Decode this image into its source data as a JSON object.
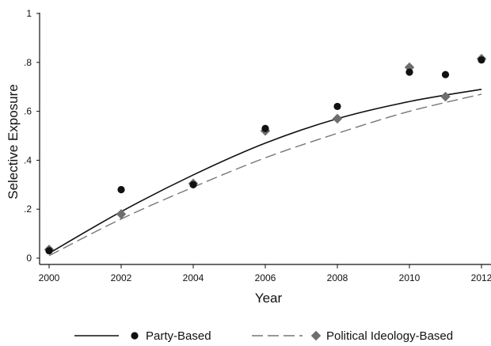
{
  "chart_data": {
    "type": "scatter",
    "xlabel": "Year",
    "ylabel": "Selective Exposure",
    "xlim": [
      2000,
      2012
    ],
    "ylim": [
      0,
      1
    ],
    "x_ticks": [
      2000,
      2002,
      2004,
      2006,
      2008,
      2010,
      2012
    ],
    "x_tick_labels": [
      "2000",
      "2002",
      "2004",
      "2006",
      "2008",
      "2010",
      "2012"
    ],
    "y_ticks": [
      0,
      0.2,
      0.4,
      0.6,
      0.8,
      1
    ],
    "y_tick_labels": [
      "0",
      ".2",
      ".4",
      ".6",
      ".8",
      "1"
    ],
    "legend_position": "bottom",
    "series": [
      {
        "name": "Party-Based",
        "marker": "circle",
        "marker_color": "#111111",
        "line_style": "solid",
        "line_color": "#111111",
        "points": [
          {
            "x": 2000,
            "y": 0.03
          },
          {
            "x": 2002,
            "y": 0.28
          },
          {
            "x": 2004,
            "y": 0.3
          },
          {
            "x": 2006,
            "y": 0.53
          },
          {
            "x": 2008,
            "y": 0.62
          },
          {
            "x": 2010,
            "y": 0.76
          },
          {
            "x": 2011,
            "y": 0.75
          },
          {
            "x": 2012,
            "y": 0.81
          }
        ],
        "fit": [
          {
            "x": 2000,
            "y": 0.02
          },
          {
            "x": 2002,
            "y": 0.19
          },
          {
            "x": 2004,
            "y": 0.34
          },
          {
            "x": 2006,
            "y": 0.47
          },
          {
            "x": 2008,
            "y": 0.57
          },
          {
            "x": 2010,
            "y": 0.64
          },
          {
            "x": 2012,
            "y": 0.69
          }
        ]
      },
      {
        "name": "Political Ideology-Based",
        "marker": "diamond",
        "marker_color": "#6e6e6e",
        "line_style": "dashed",
        "line_color": "#777777",
        "points": [
          {
            "x": 2000,
            "y": 0.035
          },
          {
            "x": 2002,
            "y": 0.18
          },
          {
            "x": 2004,
            "y": 0.305
          },
          {
            "x": 2006,
            "y": 0.52
          },
          {
            "x": 2008,
            "y": 0.57
          },
          {
            "x": 2010,
            "y": 0.78
          },
          {
            "x": 2011,
            "y": 0.66
          },
          {
            "x": 2012,
            "y": 0.815
          }
        ],
        "fit": [
          {
            "x": 2000,
            "y": 0.01
          },
          {
            "x": 2002,
            "y": 0.16
          },
          {
            "x": 2004,
            "y": 0.29
          },
          {
            "x": 2006,
            "y": 0.41
          },
          {
            "x": 2008,
            "y": 0.51
          },
          {
            "x": 2010,
            "y": 0.6
          },
          {
            "x": 2012,
            "y": 0.67
          }
        ]
      }
    ]
  }
}
